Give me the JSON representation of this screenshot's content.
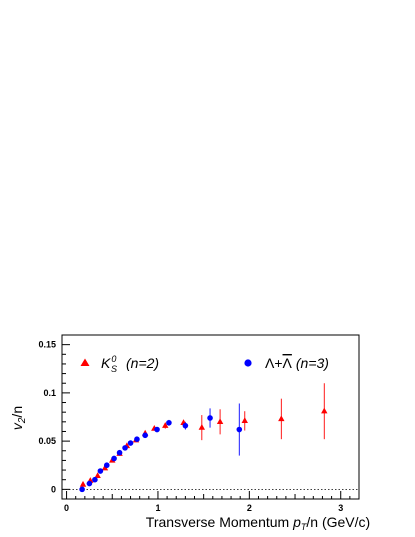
{
  "chart_data": {
    "type": "scatter",
    "xlabel": "Transverse Momentum p_T/n (GeV/c)",
    "xlabel_parts": {
      "prefix": "Transverse Momentum ",
      "var": "p",
      "sub": "T",
      "suffix": "/n (GeV/c)"
    },
    "ylabel": "v_2/n",
    "ylabel_parts": {
      "var": "v",
      "sub": "2",
      "suffix": "/n"
    },
    "xlim": [
      -0.05,
      3.2
    ],
    "ylim": [
      -0.01,
      0.16
    ],
    "x_ticks": [
      "0",
      "1",
      "2",
      "3"
    ],
    "y_ticks": [
      "0",
      "0.05",
      "0.1",
      "0.15"
    ],
    "reference_line": {
      "y": 0,
      "style": "dotted"
    },
    "legend_position": "top",
    "series": [
      {
        "name": "K_S^0 (n=2)",
        "legend_parts": {
          "var": "K",
          "sub": "S",
          "sup": "0",
          "suffix": "(n=2)"
        },
        "marker": "triangle",
        "color": "#ff0000",
        "points": [
          {
            "x": 0.18,
            "y": 0.005,
            "err": 0.002
          },
          {
            "x": 0.26,
            "y": 0.009,
            "err": 0.002
          },
          {
            "x": 0.34,
            "y": 0.014,
            "err": 0.002
          },
          {
            "x": 0.42,
            "y": 0.022,
            "err": 0.002
          },
          {
            "x": 0.5,
            "y": 0.03,
            "err": 0.002
          },
          {
            "x": 0.58,
            "y": 0.037,
            "err": 0.002
          },
          {
            "x": 0.66,
            "y": 0.045,
            "err": 0.002
          },
          {
            "x": 0.76,
            "y": 0.051,
            "err": 0.002
          },
          {
            "x": 0.86,
            "y": 0.058,
            "err": 0.002
          },
          {
            "x": 0.96,
            "y": 0.063,
            "err": 0.002
          },
          {
            "x": 1.08,
            "y": 0.066,
            "err": 0.003
          },
          {
            "x": 1.28,
            "y": 0.069,
            "err": 0.003
          },
          {
            "x": 1.48,
            "y": 0.064,
            "err": 0.013
          },
          {
            "x": 1.68,
            "y": 0.07,
            "err": 0.013
          },
          {
            "x": 1.95,
            "y": 0.071,
            "err": 0.01
          },
          {
            "x": 2.35,
            "y": 0.073,
            "err": 0.021
          },
          {
            "x": 2.82,
            "y": 0.081,
            "err": 0.029
          }
        ]
      },
      {
        "name": "Λ+Λ̄ (n=3)",
        "legend_parts": {
          "text": "Λ+",
          "bar": "Λ",
          "suffix": "(n=3)"
        },
        "marker": "circle",
        "color": "#0000ff",
        "points": [
          {
            "x": 0.17,
            "y": 0.0,
            "err": 0.002
          },
          {
            "x": 0.25,
            "y": 0.006,
            "err": 0.002
          },
          {
            "x": 0.31,
            "y": 0.01,
            "err": 0.002
          },
          {
            "x": 0.37,
            "y": 0.019,
            "err": 0.002
          },
          {
            "x": 0.44,
            "y": 0.025,
            "err": 0.002
          },
          {
            "x": 0.52,
            "y": 0.032,
            "err": 0.002
          },
          {
            "x": 0.58,
            "y": 0.038,
            "err": 0.002
          },
          {
            "x": 0.64,
            "y": 0.043,
            "err": 0.002
          },
          {
            "x": 0.7,
            "y": 0.048,
            "err": 0.002
          },
          {
            "x": 0.77,
            "y": 0.052,
            "err": 0.002
          },
          {
            "x": 0.86,
            "y": 0.056,
            "err": 0.002
          },
          {
            "x": 0.99,
            "y": 0.062,
            "err": 0.002
          },
          {
            "x": 1.12,
            "y": 0.069,
            "err": 0.003
          },
          {
            "x": 1.3,
            "y": 0.066,
            "err": 0.004
          },
          {
            "x": 1.57,
            "y": 0.074,
            "err": 0.01
          },
          {
            "x": 1.89,
            "y": 0.062,
            "err": 0.027
          }
        ]
      }
    ]
  }
}
